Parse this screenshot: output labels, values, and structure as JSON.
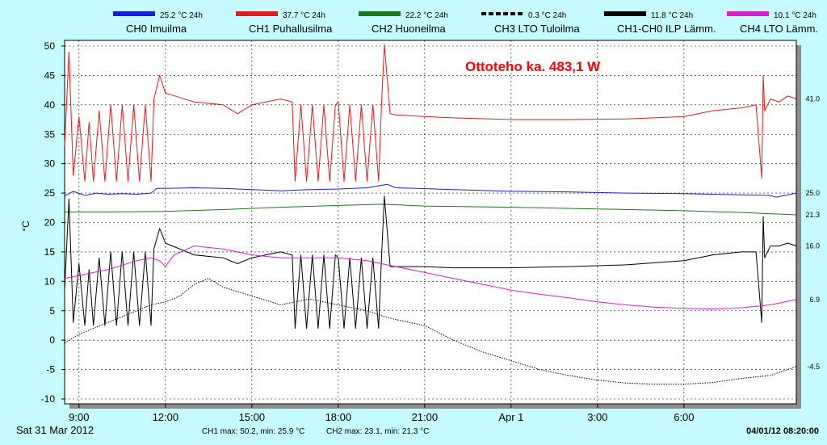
{
  "chart_data": {
    "type": "line",
    "title": "",
    "annotation": "Ottoteho ka. 483,1 W",
    "ylabel": "°C",
    "ylim": [
      -10,
      52
    ],
    "yticks": [
      50,
      45,
      40,
      35,
      30,
      25,
      20,
      15,
      10,
      5,
      0,
      -5,
      -10
    ],
    "x_start_hour": 8.5,
    "x_end_hour": 33.9,
    "xticks": [
      {
        "hour": 9,
        "label": "9:00"
      },
      {
        "hour": 12,
        "label": "12:00"
      },
      {
        "hour": 15,
        "label": "15:00"
      },
      {
        "hour": 18,
        "label": "18:00"
      },
      {
        "hour": 21,
        "label": "21:00"
      },
      {
        "hour": 24,
        "label": "Apr 1"
      },
      {
        "hour": 27,
        "label": "3:00"
      },
      {
        "hour": 30,
        "label": "6:00"
      }
    ],
    "grid": true,
    "legend_position": "top",
    "date_left": "Sat 31 Mar 2012",
    "date_right": "04/01/12 08:20:00",
    "footer": [
      "CH1 max: 50.2, min: 25.9 °C",
      "CH2 max: 23.1, min: 21.3 °C"
    ],
    "end_values": [
      {
        "label": "41.0",
        "value": 41.0
      },
      {
        "label": "25.0",
        "value": 25.0
      },
      {
        "label": "21.3",
        "value": 21.3
      },
      {
        "label": "16.0",
        "value": 16.0
      },
      {
        "label": "6.9",
        "value": 6.9
      },
      {
        "label": "-4.5",
        "value": -4.5
      }
    ],
    "series": [
      {
        "name": "CH0 Imuilma",
        "legend": "25.2 °C 24h",
        "color": "#1c1ce0",
        "style": "solid",
        "x": [
          8.5,
          8.8,
          9.2,
          9.6,
          10.0,
          10.5,
          11.0,
          11.5,
          11.7,
          12.0,
          13.0,
          14.0,
          15.0,
          16.0,
          17.0,
          18.0,
          19.0,
          19.7,
          20.0,
          22.0,
          24.0,
          26.0,
          28.0,
          30.0,
          32.0,
          33.0,
          33.2,
          33.9
        ],
        "y": [
          24.5,
          25.3,
          24.6,
          25.0,
          24.8,
          24.9,
          24.8,
          25.0,
          25.8,
          25.8,
          25.9,
          25.8,
          25.6,
          25.4,
          25.6,
          25.7,
          25.9,
          26.5,
          25.9,
          25.6,
          25.3,
          25.2,
          25.0,
          24.9,
          24.7,
          24.6,
          24.3,
          25.0
        ]
      },
      {
        "name": "CH1 Puhallusilma",
        "legend": "37.7 °C 24h",
        "color": "#e01c1c",
        "style": "solid",
        "x": [
          8.5,
          8.65,
          8.8,
          9.0,
          9.2,
          9.35,
          9.5,
          9.7,
          9.9,
          10.1,
          10.3,
          10.5,
          10.7,
          10.9,
          11.1,
          11.3,
          11.5,
          11.6,
          11.8,
          12.0,
          13.0,
          14.0,
          14.5,
          15.0,
          16.0,
          16.4,
          16.5,
          16.7,
          16.9,
          17.1,
          17.3,
          17.5,
          17.7,
          17.9,
          18.0,
          18.2,
          18.4,
          18.6,
          18.8,
          19.0,
          19.2,
          19.4,
          19.5,
          19.6,
          19.8,
          20.0,
          21.0,
          22.0,
          24.0,
          26.0,
          28.0,
          30.0,
          31.0,
          32.0,
          32.5,
          32.7,
          32.75,
          32.8,
          33.0,
          33.3,
          33.6,
          33.9
        ],
        "y": [
          33.0,
          49.0,
          28.0,
          38.0,
          27.0,
          37.0,
          27.0,
          39.0,
          27.0,
          40.0,
          27.0,
          40.0,
          27.0,
          40.0,
          27.0,
          40.0,
          27.0,
          41.0,
          45.0,
          42.0,
          40.5,
          40.0,
          38.5,
          40.0,
          41.0,
          40.5,
          27.0,
          40.0,
          27.0,
          40.0,
          27.0,
          40.0,
          27.0,
          40.0,
          40.5,
          27.0,
          40.0,
          27.0,
          40.0,
          27.0,
          40.0,
          27.0,
          40.0,
          50.2,
          38.5,
          38.3,
          38.0,
          37.8,
          37.5,
          37.5,
          37.6,
          38.0,
          39.0,
          39.5,
          40.0,
          27.5,
          45.0,
          39.0,
          41.0,
          40.5,
          41.5,
          41.0
        ]
      },
      {
        "name": "CH2 Huoneilma",
        "legend": "22.2 °C 24h",
        "color": "#1a7a1a",
        "style": "solid",
        "x": [
          8.5,
          10.0,
          12.0,
          14.0,
          16.0,
          18.0,
          19.5,
          21.0,
          24.0,
          27.0,
          30.0,
          32.0,
          33.9
        ],
        "y": [
          21.8,
          21.8,
          21.9,
          22.2,
          22.6,
          22.9,
          23.1,
          22.8,
          22.6,
          22.3,
          22.0,
          21.7,
          21.3
        ]
      },
      {
        "name": "CH3 LTO Tuloilma",
        "legend": "0.3 °C 24h",
        "color": "#000000",
        "style": "dotted",
        "x": [
          8.5,
          9.0,
          10.0,
          11.0,
          11.5,
          12.0,
          12.5,
          13.0,
          13.5,
          14.0,
          15.0,
          16.0,
          17.0,
          18.0,
          19.0,
          19.6,
          20.0,
          21.0,
          22.0,
          23.0,
          24.0,
          25.0,
          26.0,
          27.0,
          28.0,
          29.0,
          30.0,
          31.0,
          32.0,
          33.0,
          33.9
        ],
        "y": [
          -0.5,
          1.0,
          3.0,
          5.0,
          6.0,
          6.5,
          7.5,
          9.5,
          10.5,
          9.0,
          7.5,
          6.0,
          7.0,
          6.0,
          5.0,
          4.0,
          3.5,
          2.5,
          0.0,
          -2.0,
          -3.5,
          -5.0,
          -6.0,
          -6.8,
          -7.3,
          -7.5,
          -7.5,
          -7.2,
          -6.5,
          -6.0,
          -4.5
        ]
      },
      {
        "name": "CH1-CH0 ILP Lämm.",
        "legend": "11.8 °C 24h",
        "color": "#000000",
        "style": "solid",
        "x": [
          8.5,
          8.65,
          8.8,
          9.0,
          9.2,
          9.35,
          9.5,
          9.7,
          9.9,
          10.1,
          10.3,
          10.5,
          10.7,
          10.9,
          11.1,
          11.3,
          11.5,
          11.6,
          11.8,
          12.0,
          13.0,
          14.0,
          14.5,
          15.0,
          16.0,
          16.4,
          16.5,
          16.7,
          16.9,
          17.1,
          17.3,
          17.5,
          17.7,
          17.9,
          18.0,
          18.2,
          18.4,
          18.6,
          18.8,
          19.0,
          19.2,
          19.4,
          19.5,
          19.6,
          19.8,
          20.0,
          21.0,
          22.0,
          24.0,
          26.0,
          28.0,
          30.0,
          31.0,
          32.0,
          32.5,
          32.7,
          32.75,
          32.8,
          33.0,
          33.3,
          33.6,
          33.9
        ],
        "y": [
          8.5,
          24.0,
          3.0,
          13.0,
          2.5,
          12.0,
          2.5,
          14.0,
          2.5,
          15.0,
          2.5,
          15.0,
          2.5,
          15.0,
          2.5,
          15.0,
          2.5,
          15.5,
          19.0,
          16.5,
          14.5,
          14.0,
          13.0,
          14.0,
          15.0,
          14.5,
          2.0,
          14.5,
          2.0,
          14.5,
          2.0,
          14.5,
          2.0,
          14.5,
          14.0,
          2.0,
          14.0,
          2.0,
          14.0,
          2.0,
          14.0,
          2.0,
          14.0,
          24.5,
          12.5,
          12.5,
          12.5,
          12.3,
          12.3,
          12.5,
          12.8,
          13.5,
          14.5,
          15.0,
          15.0,
          3.0,
          21.0,
          14.0,
          16.0,
          16.0,
          16.5,
          16.0
        ]
      },
      {
        "name": "CH4 LTO Lämm.",
        "legend": "10.1 °C 24h",
        "color": "#d91ed0",
        "style": "solid",
        "x": [
          8.5,
          9.0,
          10.0,
          11.0,
          11.5,
          11.8,
          12.0,
          12.3,
          13.0,
          14.0,
          15.0,
          16.0,
          17.0,
          18.0,
          19.0,
          20.0,
          21.0,
          22.0,
          23.0,
          24.0,
          25.0,
          26.0,
          27.0,
          28.0,
          29.0,
          30.0,
          31.0,
          32.0,
          33.0,
          33.9
        ],
        "y": [
          10.5,
          11.0,
          12.0,
          13.5,
          14.0,
          13.5,
          12.5,
          14.5,
          16.0,
          15.5,
          14.5,
          14.0,
          14.0,
          14.0,
          13.5,
          12.5,
          11.5,
          10.5,
          9.5,
          8.5,
          7.8,
          7.2,
          6.5,
          6.0,
          5.6,
          5.4,
          5.3,
          5.5,
          6.0,
          6.9
        ]
      }
    ]
  }
}
